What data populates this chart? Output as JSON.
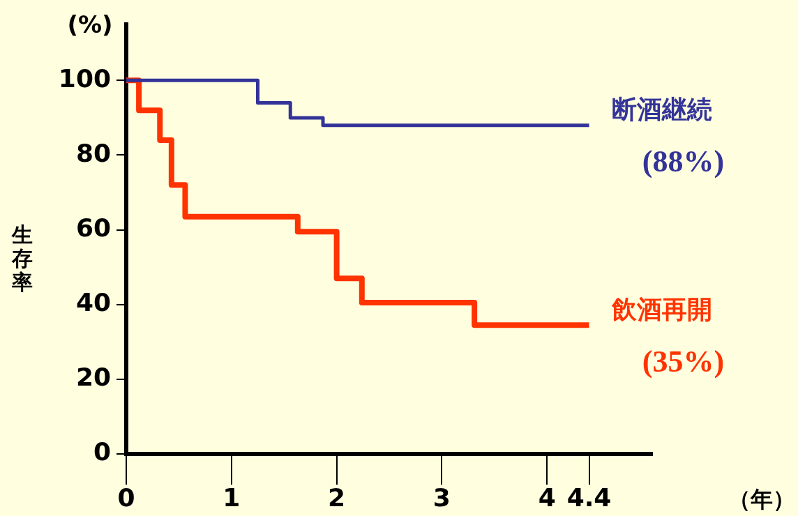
{
  "chart_data": {
    "type": "step",
    "xlabel": "（年）",
    "ylabel": "生存率",
    "xlim": [
      0,
      5
    ],
    "ylim": [
      0,
      115
    ],
    "xticks": [
      0,
      1,
      2,
      3,
      4,
      4.4
    ],
    "yticks": [
      0,
      20,
      40,
      60,
      80,
      100
    ],
    "grid": false,
    "legend": false,
    "marker": "none",
    "line_style": "solid",
    "series": [
      {
        "name": "断酒継続",
        "color": "#333399",
        "x": [
          0,
          1.25,
          1.56,
          1.87,
          4.4
        ],
        "values": [
          100,
          94,
          90,
          88,
          88
        ]
      },
      {
        "name": "飲酒再開",
        "color": "#ff3300",
        "x": [
          0,
          0.12,
          0.32,
          0.43,
          0.56,
          1.63,
          2.0,
          2.24,
          3.31,
          4.4
        ],
        "values": [
          100,
          92,
          84,
          72,
          63.5,
          59.5,
          47,
          40.5,
          34.5,
          34.5
        ]
      }
    ],
    "annotations": [
      "(%)",
      {
        "text": "(88%)",
        "x": 4.4,
        "y": 88
      },
      {
        "text": "(35%)",
        "x": 4.4,
        "y": 34.5
      }
    ]
  }
}
